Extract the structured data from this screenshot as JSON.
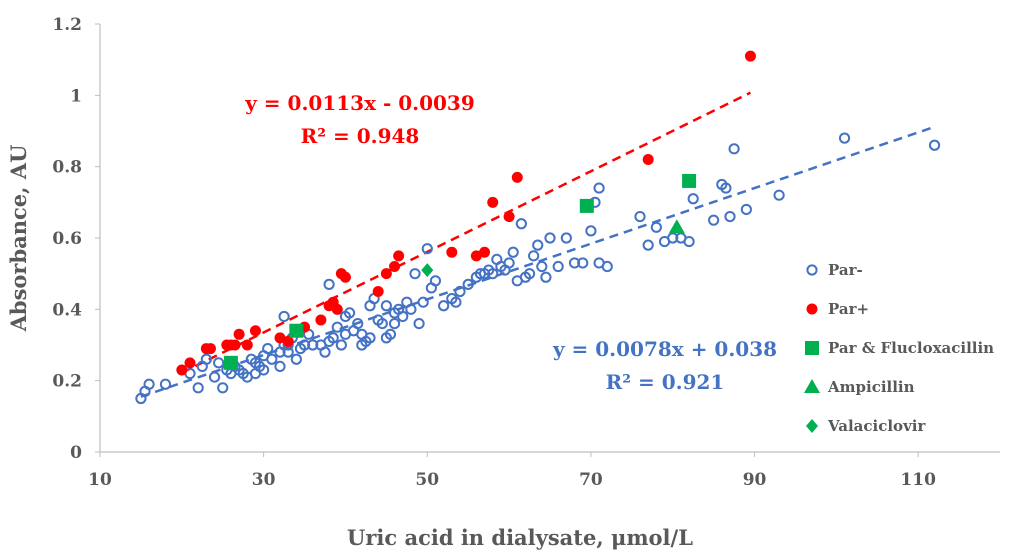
{
  "chart_data": {
    "type": "scatter",
    "xlabel": "Uric acid in dialysate, μmol/L",
    "ylabel": "Absorbance, AU",
    "xlim": [
      10,
      120
    ],
    "ylim": [
      0,
      1.2
    ],
    "xticks": [
      10,
      30,
      50,
      70,
      90,
      110
    ],
    "yticks": [
      0,
      0.2,
      0.4,
      0.6,
      0.8,
      1,
      1.2
    ],
    "ytick_labels": [
      "0",
      "0.2",
      "0.4",
      "0.6",
      "0.8",
      "1",
      "1.2"
    ],
    "grid": false,
    "legend_position": "right",
    "series": [
      {
        "name": "Par-",
        "marker": "open-circle",
        "color": "#4472C4",
        "points": [
          [
            15,
            0.15
          ],
          [
            15.5,
            0.17
          ],
          [
            16,
            0.19
          ],
          [
            18,
            0.19
          ],
          [
            21,
            0.22
          ],
          [
            22,
            0.18
          ],
          [
            22.5,
            0.24
          ],
          [
            23,
            0.26
          ],
          [
            24,
            0.21
          ],
          [
            24.5,
            0.25
          ],
          [
            25,
            0.18
          ],
          [
            25.5,
            0.23
          ],
          [
            26,
            0.22
          ],
          [
            26.5,
            0.24
          ],
          [
            27,
            0.23
          ],
          [
            27.5,
            0.22
          ],
          [
            28,
            0.21
          ],
          [
            28.5,
            0.26
          ],
          [
            29,
            0.22
          ],
          [
            29,
            0.25
          ],
          [
            29.5,
            0.24
          ],
          [
            30,
            0.23
          ],
          [
            30,
            0.27
          ],
          [
            30.5,
            0.29
          ],
          [
            31,
            0.26
          ],
          [
            32,
            0.28
          ],
          [
            32,
            0.24
          ],
          [
            32.5,
            0.3
          ],
          [
            32.5,
            0.38
          ],
          [
            33,
            0.28
          ],
          [
            33,
            0.3
          ],
          [
            33.5,
            0.32
          ],
          [
            34,
            0.26
          ],
          [
            34.5,
            0.29
          ],
          [
            35,
            0.3
          ],
          [
            35.5,
            0.33
          ],
          [
            36,
            0.3
          ],
          [
            37,
            0.3
          ],
          [
            37.5,
            0.28
          ],
          [
            38,
            0.31
          ],
          [
            38,
            0.47
          ],
          [
            38.5,
            0.32
          ],
          [
            39,
            0.35
          ],
          [
            39.5,
            0.3
          ],
          [
            40,
            0.33
          ],
          [
            40,
            0.38
          ],
          [
            40.5,
            0.39
          ],
          [
            41,
            0.34
          ],
          [
            41.5,
            0.36
          ],
          [
            42,
            0.33
          ],
          [
            42,
            0.3
          ],
          [
            42.5,
            0.31
          ],
          [
            43,
            0.32
          ],
          [
            43,
            0.41
          ],
          [
            43.5,
            0.43
          ],
          [
            44,
            0.37
          ],
          [
            44.5,
            0.36
          ],
          [
            45,
            0.32
          ],
          [
            45,
            0.41
          ],
          [
            45.5,
            0.33
          ],
          [
            46,
            0.39
          ],
          [
            46,
            0.36
          ],
          [
            46.5,
            0.4
          ],
          [
            47,
            0.38
          ],
          [
            47.5,
            0.42
          ],
          [
            48,
            0.4
          ],
          [
            48.5,
            0.5
          ],
          [
            49,
            0.36
          ],
          [
            49.5,
            0.42
          ],
          [
            50,
            0.57
          ],
          [
            50.5,
            0.46
          ],
          [
            51,
            0.48
          ],
          [
            52,
            0.41
          ],
          [
            53,
            0.43
          ],
          [
            53.5,
            0.42
          ],
          [
            54,
            0.45
          ],
          [
            55,
            0.47
          ],
          [
            56,
            0.49
          ],
          [
            56.5,
            0.5
          ],
          [
            57,
            0.5
          ],
          [
            57.5,
            0.51
          ],
          [
            58,
            0.5
          ],
          [
            58.5,
            0.54
          ],
          [
            59,
            0.52
          ],
          [
            59.5,
            0.51
          ],
          [
            60,
            0.53
          ],
          [
            60.5,
            0.56
          ],
          [
            61,
            0.48
          ],
          [
            61.5,
            0.64
          ],
          [
            62,
            0.49
          ],
          [
            62.5,
            0.5
          ],
          [
            63,
            0.55
          ],
          [
            63.5,
            0.58
          ],
          [
            64,
            0.52
          ],
          [
            64.5,
            0.49
          ],
          [
            65,
            0.6
          ],
          [
            66,
            0.52
          ],
          [
            67,
            0.6
          ],
          [
            68,
            0.53
          ],
          [
            69,
            0.53
          ],
          [
            70,
            0.62
          ],
          [
            70.5,
            0.7
          ],
          [
            71,
            0.74
          ],
          [
            71,
            0.53
          ],
          [
            72,
            0.52
          ],
          [
            76,
            0.66
          ],
          [
            77,
            0.58
          ],
          [
            78,
            0.63
          ],
          [
            79,
            0.59
          ],
          [
            80,
            0.6
          ],
          [
            81,
            0.6
          ],
          [
            82,
            0.59
          ],
          [
            82.5,
            0.71
          ],
          [
            85,
            0.65
          ],
          [
            86,
            0.75
          ],
          [
            86.5,
            0.74
          ],
          [
            87,
            0.66
          ],
          [
            87.5,
            0.85
          ],
          [
            89,
            0.68
          ],
          [
            93,
            0.72
          ],
          [
            101,
            0.88
          ],
          [
            112,
            0.86
          ]
        ]
      },
      {
        "name": "Par+",
        "marker": "filled-circle",
        "color": "#FF0000",
        "points": [
          [
            20,
            0.23
          ],
          [
            21,
            0.25
          ],
          [
            23,
            0.29
          ],
          [
            23.5,
            0.29
          ],
          [
            25.5,
            0.3
          ],
          [
            26,
            0.3
          ],
          [
            26.5,
            0.3
          ],
          [
            27,
            0.33
          ],
          [
            28,
            0.3
          ],
          [
            29,
            0.34
          ],
          [
            32,
            0.32
          ],
          [
            33,
            0.31
          ],
          [
            35,
            0.35
          ],
          [
            37,
            0.37
          ],
          [
            38,
            0.41
          ],
          [
            38.5,
            0.42
          ],
          [
            39,
            0.4
          ],
          [
            39.5,
            0.5
          ],
          [
            40,
            0.49
          ],
          [
            44,
            0.45
          ],
          [
            45,
            0.5
          ],
          [
            46,
            0.52
          ],
          [
            46.5,
            0.55
          ],
          [
            53,
            0.56
          ],
          [
            56,
            0.55
          ],
          [
            57,
            0.56
          ],
          [
            58,
            0.7
          ],
          [
            60,
            0.66
          ],
          [
            61,
            0.77
          ],
          [
            77,
            0.82
          ],
          [
            89.5,
            1.11
          ]
        ]
      },
      {
        "name": "Par & Flucloxacillin",
        "marker": "square",
        "color": "#00B050",
        "points": [
          [
            26,
            0.25
          ],
          [
            34,
            0.34
          ],
          [
            69.5,
            0.69
          ],
          [
            82,
            0.76
          ]
        ]
      },
      {
        "name": "Ampicillin",
        "marker": "triangle",
        "color": "#00B050",
        "points": [
          [
            80.5,
            0.63
          ]
        ]
      },
      {
        "name": "Valaciclovir",
        "marker": "diamond",
        "color": "#00B050",
        "points": [
          [
            50,
            0.51
          ]
        ]
      }
    ],
    "trendlines": [
      {
        "series": "Par+",
        "slope": 0.0113,
        "intercept": -0.0039,
        "x_range": [
          20,
          89.5
        ],
        "color": "#FF0000",
        "equation": "y = 0.0113x - 0.0039",
        "r2": "R² = 0.948"
      },
      {
        "series": "Par-",
        "slope": 0.0078,
        "intercept": 0.038,
        "x_range": [
          15,
          112
        ],
        "color": "#4472C4",
        "equation": "y = 0.0078x + 0.038",
        "r2": "R² = 0.921"
      }
    ]
  }
}
